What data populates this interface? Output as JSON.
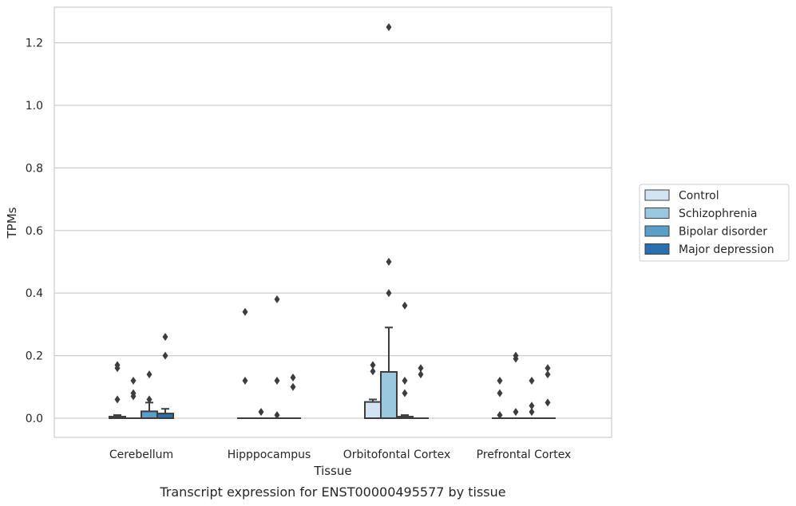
{
  "caption": "Transcript expression for ENST00000495577 by tissue",
  "chart_data": {
    "type": "box",
    "xlabel": "Tissue",
    "ylabel": "TPMs",
    "ylim": [
      -0.06,
      1.32
    ],
    "yticks": [
      0.0,
      0.2,
      0.4,
      0.6,
      0.8,
      1.0,
      1.2
    ],
    "ytick_labels": [
      "0.0",
      "0.2",
      "0.4",
      "0.6",
      "0.8",
      "1.0",
      "1.2"
    ],
    "grid": "horizontal",
    "legend_position": "right",
    "categories": [
      "Cerebellum",
      "Hipppocampus",
      "Orbitofontal Cortex",
      "Prefrontal Cortex"
    ],
    "series": [
      {
        "name": "Control",
        "color": "#d2e3f3",
        "boxes": [
          {
            "q1": 0.0,
            "median": 0.0,
            "q3": 0.005,
            "whisker_low": 0.0,
            "whisker_high": 0.01,
            "outliers": [
              0.06,
              0.16,
              0.17
            ]
          },
          {
            "q1": 0.0,
            "median": 0.0,
            "q3": 0.0,
            "whisker_low": 0.0,
            "whisker_high": 0.0,
            "outliers": [
              0.12,
              0.34
            ]
          },
          {
            "q1": 0.0,
            "median": 0.0,
            "q3": 0.052,
            "whisker_low": 0.0,
            "whisker_high": 0.06,
            "outliers": [
              0.15,
              0.17
            ]
          },
          {
            "q1": 0.0,
            "median": 0.0,
            "q3": 0.0,
            "whisker_low": 0.0,
            "whisker_high": 0.0,
            "outliers": [
              0.01,
              0.08,
              0.12
            ]
          }
        ]
      },
      {
        "name": "Schizophrenia",
        "color": "#9ac8e0",
        "boxes": [
          {
            "q1": 0.0,
            "median": 0.0,
            "q3": 0.0,
            "whisker_low": 0.0,
            "whisker_high": 0.0,
            "outliers": [
              0.07,
              0.08,
              0.12
            ]
          },
          {
            "q1": 0.0,
            "median": 0.0,
            "q3": 0.0,
            "whisker_low": 0.0,
            "whisker_high": 0.0,
            "outliers": [
              0.02
            ]
          },
          {
            "q1": 0.0,
            "median": 0.0,
            "q3": 0.148,
            "whisker_low": 0.0,
            "whisker_high": 0.29,
            "outliers": [
              0.4,
              0.5,
              1.25
            ]
          },
          {
            "q1": 0.0,
            "median": 0.0,
            "q3": 0.0,
            "whisker_low": 0.0,
            "whisker_high": 0.0,
            "outliers": [
              0.02,
              0.19,
              0.2
            ]
          }
        ]
      },
      {
        "name": "Bipolar disorder",
        "color": "#5a9ec9",
        "boxes": [
          {
            "q1": 0.0,
            "median": 0.0,
            "q3": 0.022,
            "whisker_low": 0.0,
            "whisker_high": 0.05,
            "outliers": [
              0.06,
              0.14
            ]
          },
          {
            "q1": 0.0,
            "median": 0.0,
            "q3": 0.0,
            "whisker_low": 0.0,
            "whisker_high": 0.0,
            "outliers": [
              0.01,
              0.12,
              0.38
            ]
          },
          {
            "q1": 0.0,
            "median": 0.0,
            "q3": 0.005,
            "whisker_low": 0.0,
            "whisker_high": 0.01,
            "outliers": [
              0.08,
              0.12,
              0.36
            ]
          },
          {
            "q1": 0.0,
            "median": 0.0,
            "q3": 0.0,
            "whisker_low": 0.0,
            "whisker_high": 0.0,
            "outliers": [
              0.02,
              0.04,
              0.12
            ]
          }
        ]
      },
      {
        "name": "Major depression",
        "color": "#2a6fb0",
        "boxes": [
          {
            "q1": 0.0,
            "median": 0.0,
            "q3": 0.015,
            "whisker_low": 0.0,
            "whisker_high": 0.03,
            "outliers": [
              0.2,
              0.26
            ]
          },
          {
            "q1": 0.0,
            "median": 0.0,
            "q3": 0.0,
            "whisker_low": 0.0,
            "whisker_high": 0.0,
            "outliers": [
              0.1,
              0.13
            ]
          },
          {
            "q1": 0.0,
            "median": 0.0,
            "q3": 0.0,
            "whisker_low": 0.0,
            "whisker_high": 0.0,
            "outliers": [
              0.14,
              0.16
            ]
          },
          {
            "q1": 0.0,
            "median": 0.0,
            "q3": 0.0,
            "whisker_low": 0.0,
            "whisker_high": 0.0,
            "outliers": [
              0.05,
              0.14,
              0.16
            ]
          }
        ]
      }
    ]
  }
}
